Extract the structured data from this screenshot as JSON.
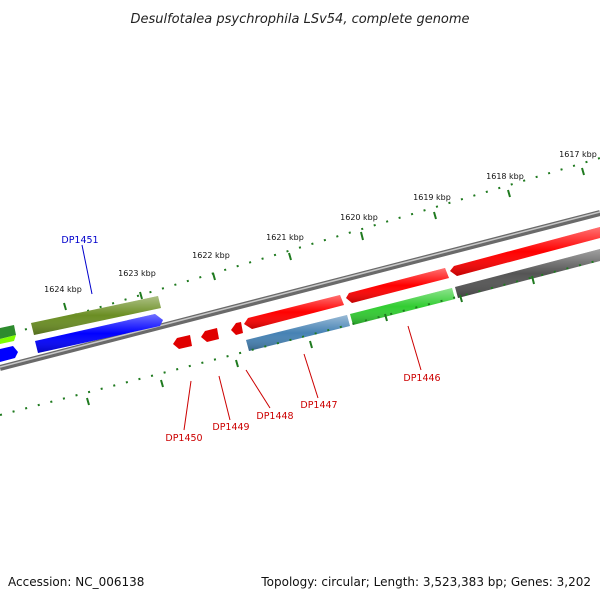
{
  "title": "Desulfotalea psychrophila LSv54, complete genome",
  "footer": {
    "accession": "Accession: NC_006138",
    "summary": "Topology: circular; Length: 3,523,383 bp; Genes: 3,202"
  },
  "scale_labels": [
    "1617 kbp",
    "1618 kbp",
    "1619 kbp",
    "1620 kbp",
    "1621 kbp",
    "1622 kbp",
    "1623 kbp",
    "1624 kbp"
  ],
  "gene_labels": {
    "forward": [
      "DP1451"
    ],
    "reverse": [
      "DP1446",
      "DP1447",
      "DP1448",
      "DP1449",
      "DP1450"
    ]
  },
  "colors": {
    "backbone": "#7a7a7a",
    "tick": "#1f7a1f",
    "forward_label": "#0000cc",
    "reverse_label": "#cc0000",
    "red_gene": "#ff0000",
    "dark_red_gene": "#cc0000",
    "olive_gene": "#6b8e23",
    "light_green_gene": "#32cd32",
    "blue_gene": "#0000ff",
    "steel_blue_gene": "#4682b4",
    "gray_gene": "#555555"
  }
}
